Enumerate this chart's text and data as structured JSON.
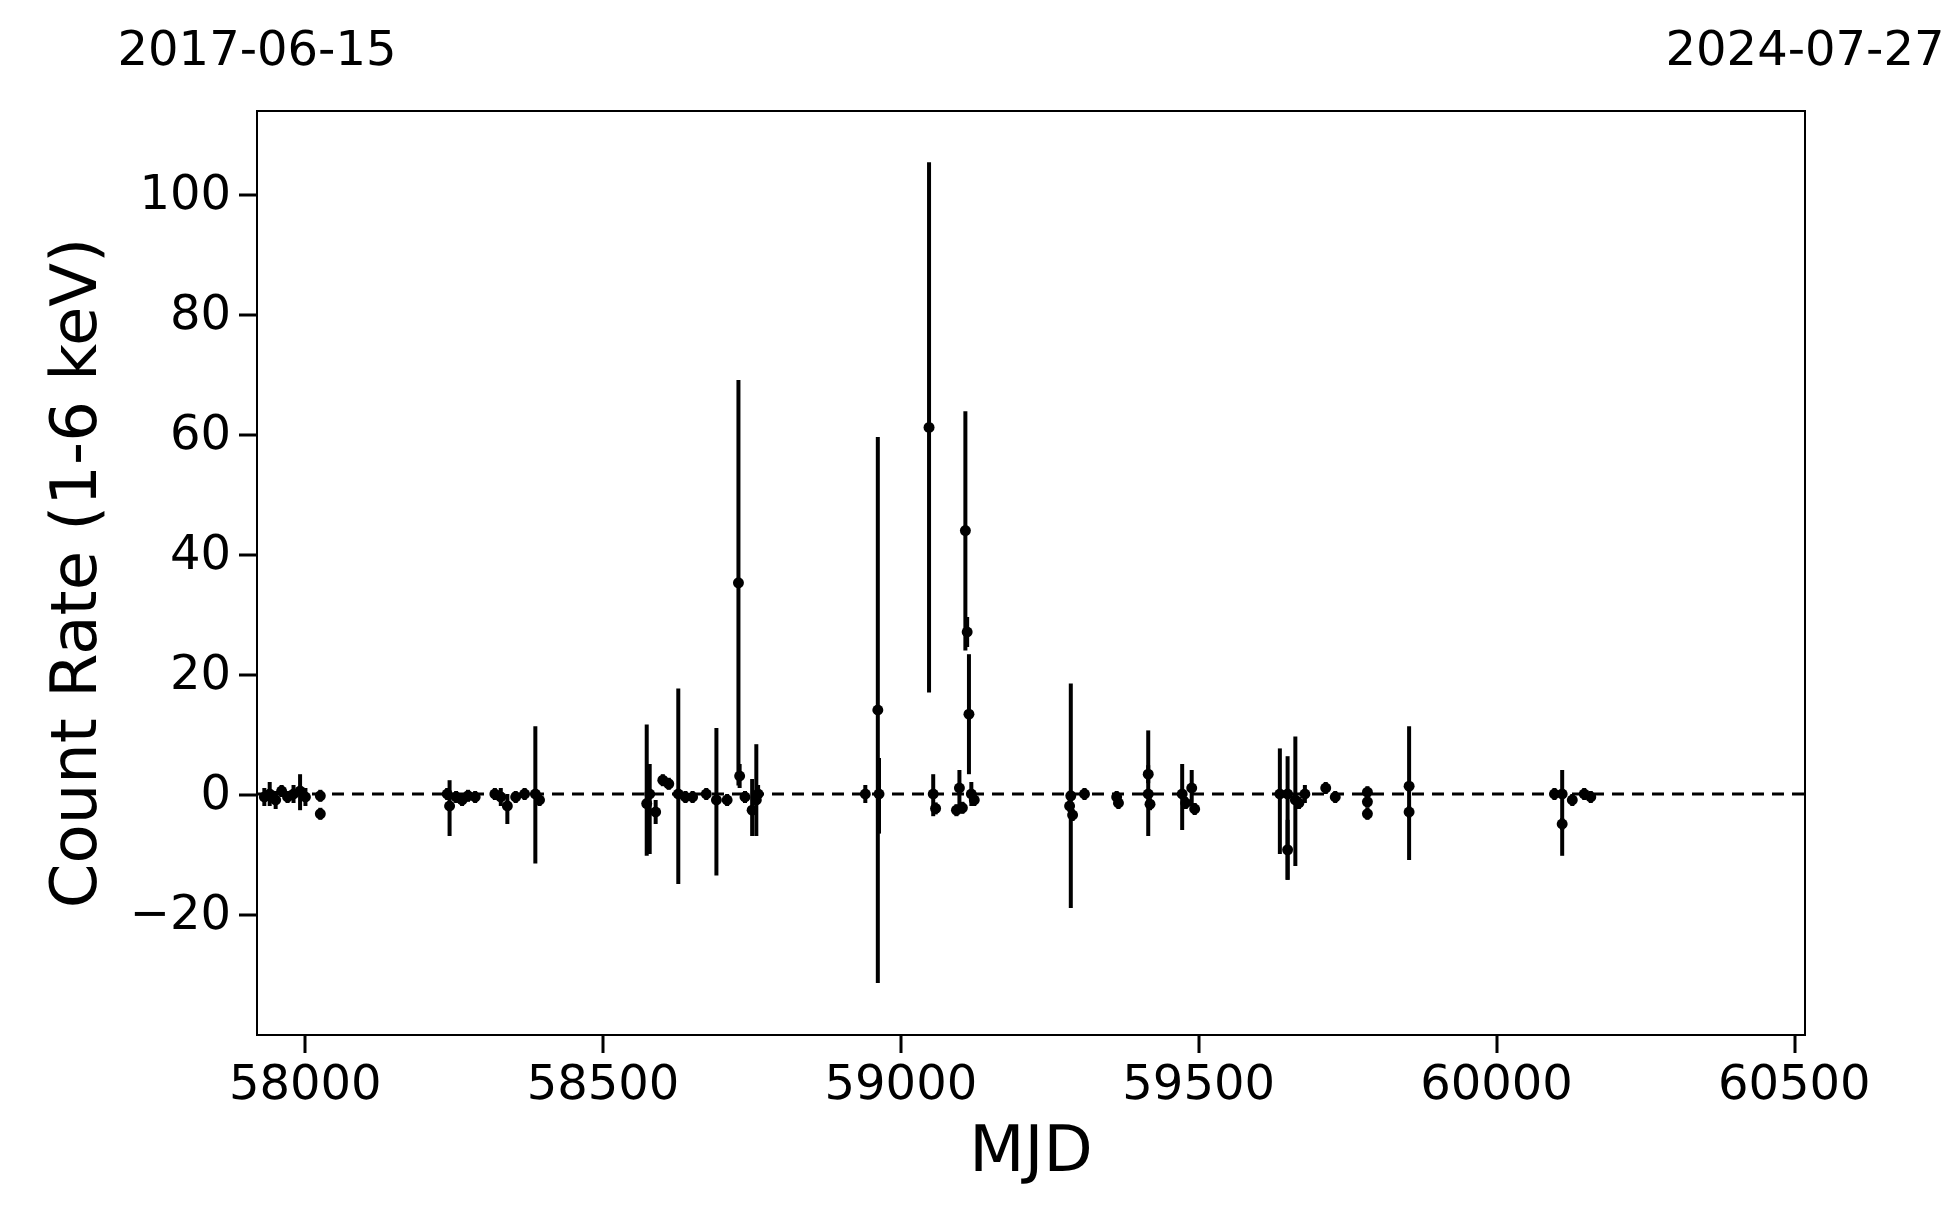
{
  "chart_data": {
    "type": "scatter",
    "xlabel": "MJD",
    "ylabel": "Count Rate (1-6 keV)",
    "xlim": [
      57919,
      60518
    ],
    "xticks": [
      58000,
      58500,
      59000,
      59500,
      60000,
      60500
    ],
    "x2lim": [
      "2017-06-15",
      "2024-07-27"
    ],
    "x2ticks": [
      "2017-06-15",
      "2024-07-27"
    ],
    "ylim": [
      -40,
      114
    ],
    "yticks": [
      -20,
      0,
      20,
      40,
      60,
      80,
      100
    ],
    "grid": false,
    "marker": "circle",
    "ref_lines": [
      {
        "axis": "y",
        "value": 0,
        "line_style": "dashed",
        "color": "#000000"
      }
    ],
    "series": [
      {
        "color": "#000000",
        "x": [
          57933,
          57942,
          57952,
          57962,
          57972,
          57982,
          57993,
          58002,
          58027,
          58027,
          58240,
          58244,
          58255,
          58265,
          58275,
          58287,
          58320,
          58330,
          58341,
          58355,
          58370,
          58388,
          58395,
          58575,
          58580,
          58590,
          58602,
          58612,
          58628,
          58640,
          58652,
          58675,
          58692,
          58710,
          58729,
          58731,
          58740,
          58752,
          58759,
          58762,
          58942,
          58963,
          58965,
          59049,
          59056,
          59060,
          59095,
          59100,
          59105,
          59110,
          59113,
          59116,
          59120,
          59125,
          59285,
          59287,
          59290,
          59310,
          59364,
          59367,
          59417,
          59417,
          59420,
          59474,
          59480,
          59490,
          59495,
          59638,
          59651,
          59651,
          59664,
          59670,
          59680,
          59715,
          59731,
          59785,
          59785,
          59785,
          59855,
          59855,
          60099,
          60112,
          60112,
          60129,
          60149,
          60160
        ],
        "values": [
          -0.5,
          0,
          -1,
          0.5,
          -0.5,
          0,
          0.5,
          -0.5,
          -0.3,
          -3.3,
          0,
          -2,
          -0.5,
          -1,
          -0.3,
          -0.5,
          0,
          -0.5,
          -2,
          -0.5,
          0,
          0,
          -1,
          -1.6,
          0,
          -3,
          2.3,
          1.7,
          0,
          -0.5,
          -0.5,
          0,
          -1,
          -1,
          35.2,
          3,
          -0.5,
          -2.7,
          -1,
          0,
          0,
          14,
          0,
          61.1,
          0,
          -2.4,
          -2.7,
          1,
          -2.3,
          43.9,
          27,
          13.3,
          0,
          -1,
          -2,
          -0.3,
          -3.5,
          0,
          -0.5,
          -1.5,
          3.3,
          0,
          -1.7,
          0,
          -1.5,
          1,
          -2.5,
          0,
          -9.3,
          0,
          -1,
          -1.5,
          0,
          1,
          -0.5,
          0.3,
          -1.3,
          -3.3,
          1.3,
          -3,
          0,
          -5,
          0,
          -1,
          0,
          -0.5
        ],
        "errors": [
          1.5,
          2,
          1.5,
          1,
          1,
          1.5,
          [
            -2.7,
            3.3
          ],
          1.5,
          1,
          1,
          1,
          [
            -7,
            2.3
          ],
          1,
          1,
          1,
          1,
          1,
          1.5,
          [
            -5,
            0
          ],
          1,
          1,
          [
            -11.6,
            11.3
          ],
          1,
          [
            -10.3,
            11.6
          ],
          [
            -10,
            5
          ],
          2,
          1,
          1,
          [
            -15,
            17.6
          ],
          1,
          1,
          1,
          [
            -13.6,
            11
          ],
          1,
          33.8,
          2,
          1,
          [
            -7,
            2.5
          ],
          [
            -7,
            8.3
          ],
          1.5,
          1.5,
          45.5,
          [
            -6.6,
            6
          ],
          44.2,
          [
            -3.7,
            3.3
          ],
          1,
          1,
          3,
          1,
          [
            23.9,
            63.8
          ],
          2.5,
          10,
          2,
          1,
          1,
          18.7,
          1,
          1,
          1,
          1,
          1.5,
          [
            -7,
            10.6
          ],
          1,
          [
            -6,
            5
          ],
          1,
          3,
          1,
          [
            -10,
            7.6
          ],
          5,
          [
            -14.3,
            6.3
          ],
          [
            -12,
            9.6
          ],
          1,
          1.5,
          1,
          1,
          1,
          1,
          1,
          [
            -11,
            11.3
          ],
          1,
          1,
          1,
          [
            -10.3,
            4
          ],
          1,
          1,
          1
        ]
      }
    ]
  }
}
